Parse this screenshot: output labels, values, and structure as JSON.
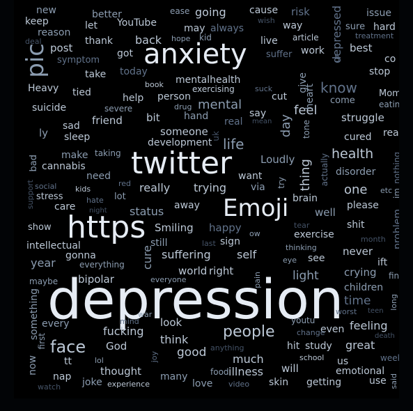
{
  "colors": {
    "background": "#000000",
    "frame": "#020406",
    "tone1": "#e6ecf4",
    "tone2": "#bcc8d6",
    "tone3": "#8c9db1",
    "tone4": "#61728a",
    "tone5": "#445266"
  },
  "words": {
    "depression": "depression",
    "twitter": "twitter",
    "https": "https",
    "anxiety": "anxiety",
    "emoji": "Emoji",
    "pic": "pic",
    "face": "face",
    "people": "people",
    "health": "health",
    "mental": "mental",
    "mentalhealth": "mentalhealth",
    "life": "life",
    "know": "know",
    "feel": "feel",
    "thing": "thing",
    "day": "day",
    "one": "one",
    "status": "status",
    "really": "really",
    "trying": "trying",
    "smiling": "Smiling",
    "happy": "happy",
    "suffering": "suffering",
    "self": "self",
    "world": "world",
    "right": "right",
    "bipolar": "bipolar",
    "cure": "cure",
    "light": "light",
    "crying": "crying",
    "time": "time",
    "children": "children",
    "feeling": "feeling",
    "great": "great",
    "study": "study",
    "hit": "hit",
    "even": "even",
    "will": "will",
    "emotional": "emotional",
    "getting": "getting",
    "skin": "skin",
    "illness": "illness",
    "much": "much",
    "good": "good",
    "think": "think",
    "look": "look",
    "fucking": "fucking",
    "god": "God",
    "thought": "thought",
    "many": "many",
    "love": "love",
    "joke": "joke",
    "nap": "nap",
    "tt": "tt",
    "now": "now",
    "something": "something",
    "every": "every",
    "year": "year",
    "intellectual": "intellectual",
    "gonna": "gonna",
    "show": "show",
    "care": "care",
    "stress": "stress",
    "cannabis": "cannabis",
    "make": "make",
    "bad": "bad",
    "need": "need",
    "lot": "lot",
    "away": "away",
    "sign": "sign",
    "still": "still",
    "exercise": "exercise",
    "never": "never",
    "ift": "ift",
    "see": "see",
    "shit": "shit",
    "well": "well",
    "please": "please",
    "brain": "brain",
    "disorder": "disorder",
    "problem": "problem",
    "cured": "cured",
    "read": "read",
    "struggle": "struggle",
    "come": "come",
    "heart": "heart",
    "give": "give",
    "cut": "cut",
    "say": "say",
    "real": "real",
    "want": "want",
    "via": "via",
    "loudly": "Loudly",
    "development": "development",
    "someone": "someone",
    "bit": "bit",
    "hand": "hand",
    "friend": "friend",
    "sad": "sad",
    "sleep": "sleep",
    "ly": "ly",
    "suicide": "suicide",
    "tied": "tied",
    "heavy": "Heavy",
    "take": "take",
    "help": "help",
    "person": "person",
    "post": "post",
    "thank": "thank",
    "back": "back",
    "got": "got",
    "today": "today",
    "let": "let",
    "keep": "keep",
    "new": "new",
    "better": "better",
    "youtube": "YouTube",
    "going": "going",
    "cause": "cause",
    "may": "may",
    "always": "always",
    "risk": "risk",
    "depressed": "depressed",
    "issue": "issue",
    "sure": "sure",
    "hard": "hard",
    "best": "best",
    "co": "co",
    "stop": "stop",
    "mom": "Mom",
    "eating": "eating",
    "treatment": "treatment",
    "way": "way",
    "article": "article",
    "work": "work",
    "live": "live",
    "suffer": "suffer",
    "wish": "wish",
    "ease": "ease",
    "kid": "kid",
    "hope": "hope",
    "reason": "reason",
    "deal": "deal",
    "symptom": "symptom",
    "book": "book",
    "exercising": "exercising",
    "suck": "suck",
    "drug": "drug",
    "severe": "severe",
    "mean": "mean",
    "tone": "tone",
    "actually": "actually",
    "nothing": "nothing",
    "etc": "etc",
    "im": "im",
    "uk": "uk",
    "try": "try",
    "taking": "taking",
    "kids": "kids",
    "red": "red",
    "social": "social",
    "hate": "hate",
    "night": "night",
    "support": "support",
    "ow": "ow",
    "tear": "tear",
    "month": "month",
    "last": "last",
    "thinking": "thinking",
    "eye": "eye",
    "everything": "everything",
    "everyone": "everyone",
    "pain": "pain",
    "maybe": "maybe",
    "find": "find",
    "long": "long",
    "worst": "worst",
    "teen": "teen",
    "mind": "mind",
    "war": "war",
    "youtu": "youtu",
    "change": "change",
    "death": "death",
    "week": "week",
    "anything": "anything",
    "school": "school",
    "first": "first",
    "lol": "lol",
    "joy": "joy",
    "food": "food",
    "video": "video",
    "experience": "experience",
    "watch": "watch",
    "us": "us",
    "use": "use",
    "said": "said",
    "ur": "ur"
  }
}
